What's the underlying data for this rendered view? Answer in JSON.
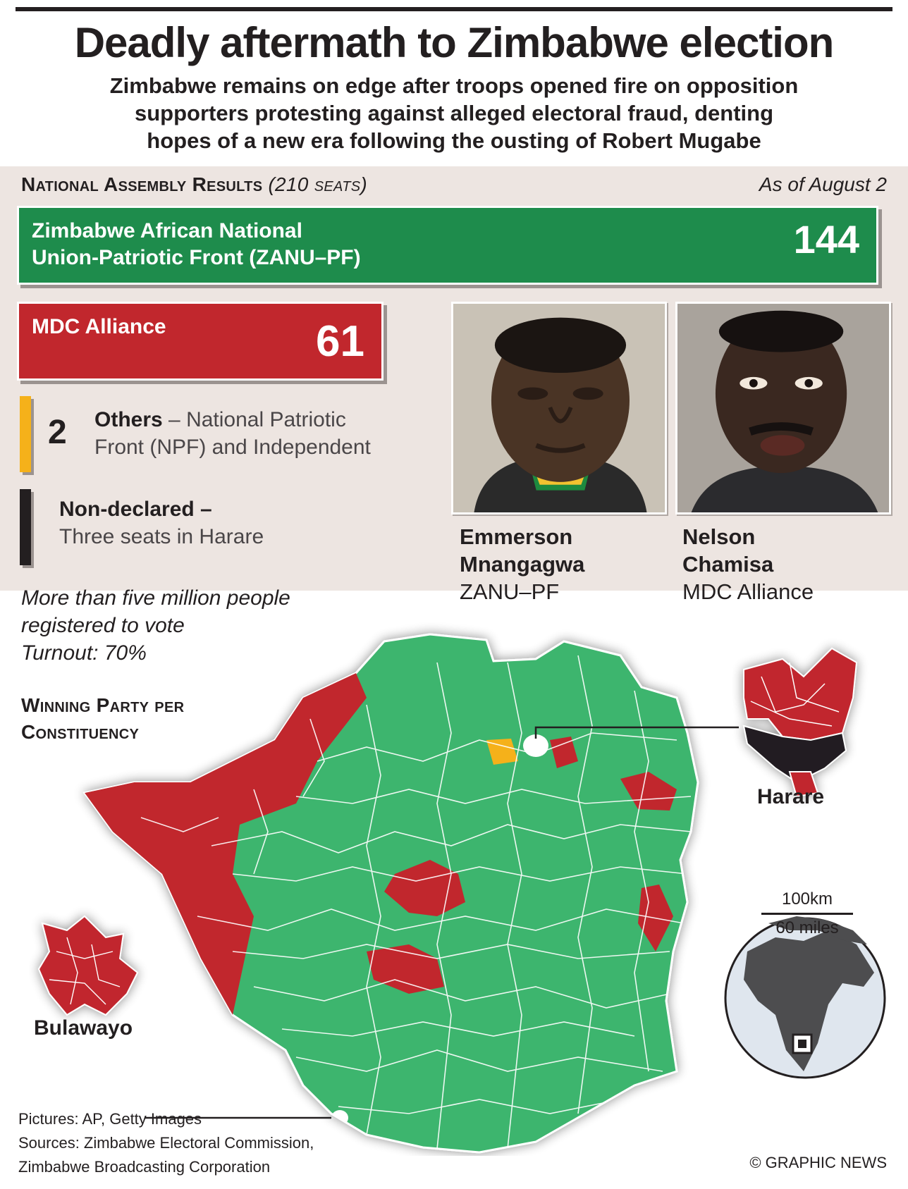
{
  "headline": "Deadly aftermath to Zimbabwe election",
  "standfirst": [
    "Zimbabwe remains on edge after troops opened fire on opposition",
    "supporters protesting against alleged electoral fraud, denting",
    "hopes of a new era following the ousting of Robert Mugabe"
  ],
  "results": {
    "title": "National Assembly Results",
    "seats_note": "(210 seats)",
    "as_of": "As of August 2",
    "zanu_pf": {
      "name_line1": "Zimbabwe African National",
      "name_line2": "Union-Patriotic Front (ZANU–PF)",
      "seats": "144",
      "color": "#1e8c4c"
    },
    "mdc": {
      "name": "MDC Alliance",
      "seats": "61",
      "color": "#c1272d"
    },
    "others": {
      "count": "2",
      "label": "Others",
      "desc_line1": "– National Patriotic",
      "desc_line2": "Front (NPF) and Independent",
      "color": "#f5b11a"
    },
    "non_declared": {
      "label": "Non-declared –",
      "desc": "Three seats in Harare",
      "color": "#231f20"
    }
  },
  "candidates": [
    {
      "first": "Emmerson",
      "last": "Mnangagwa",
      "party": "ZANU–PF"
    },
    {
      "first": "Nelson",
      "last": "Chamisa",
      "party": "MDC Alliance"
    }
  ],
  "voters": {
    "line1": "More than five million people",
    "line2": "registered to vote",
    "line3": "Turnout: 70%"
  },
  "map": {
    "title_line1": "Winning Party per",
    "title_line2": "Constituency",
    "harare": "Harare",
    "bulawayo": "Bulawayo",
    "scale_km": "100km",
    "scale_miles": "60 miles"
  },
  "credits": {
    "pictures": "Pictures: AP, Getty Images",
    "sources_line1": "Sources: Zimbabwe Electoral Commission,",
    "sources_line2": "Zimbabwe Broadcasting Corporation",
    "copyright": "© GRAPHIC NEWS"
  }
}
